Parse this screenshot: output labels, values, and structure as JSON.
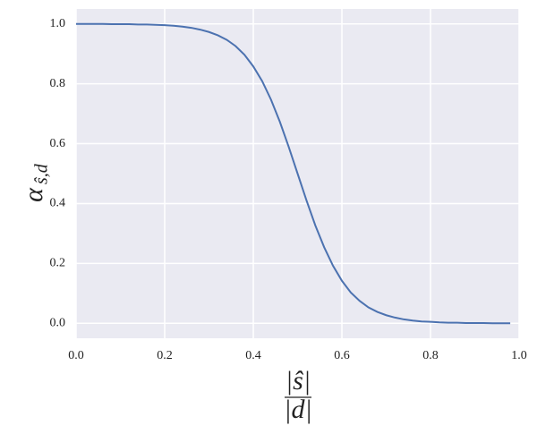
{
  "chart_data": {
    "type": "line",
    "xlabel": {
      "numerator": "|ŝ|",
      "denominator": "|d|"
    },
    "ylabel": {
      "symbol": "α",
      "subscript": "ŝ,d"
    },
    "x": [
      0,
      0.02,
      0.04,
      0.06,
      0.08,
      0.1,
      0.12,
      0.14,
      0.16,
      0.18,
      0.2,
      0.22,
      0.24,
      0.26,
      0.28,
      0.3,
      0.32,
      0.34,
      0.36,
      0.38,
      0.4,
      0.42,
      0.44,
      0.46,
      0.48,
      0.5,
      0.52,
      0.54,
      0.56,
      0.58,
      0.6,
      0.62,
      0.64,
      0.66,
      0.68,
      0.7,
      0.72,
      0.74,
      0.76,
      0.78,
      0.8,
      0.82,
      0.84,
      0.86,
      0.88,
      0.9,
      0.92,
      0.94,
      0.96,
      0.98
    ],
    "series": [
      {
        "color": "#4c72b0",
        "values": [
          1.0,
          1.0,
          1.0,
          1.0,
          0.999,
          0.999,
          0.999,
          0.998,
          0.998,
          0.997,
          0.996,
          0.994,
          0.991,
          0.987,
          0.981,
          0.973,
          0.962,
          0.947,
          0.926,
          0.897,
          0.858,
          0.809,
          0.747,
          0.673,
          0.589,
          0.5,
          0.411,
          0.327,
          0.254,
          0.192,
          0.142,
          0.103,
          0.075,
          0.053,
          0.038,
          0.027,
          0.019,
          0.013,
          0.009,
          0.006,
          0.005,
          0.003,
          0.002,
          0.002,
          0.001,
          0.001,
          0.001,
          0.0,
          0.0,
          0.0
        ]
      }
    ],
    "xlim": [
      0,
      1
    ],
    "ylim": [
      -0.05,
      1.05
    ],
    "xticks": [
      {
        "value": 0,
        "label": "0.0"
      },
      {
        "value": 0.2,
        "label": "0.2"
      },
      {
        "value": 0.4,
        "label": "0.4"
      },
      {
        "value": 0.6,
        "label": "0.6"
      },
      {
        "value": 0.8,
        "label": "0.8"
      },
      {
        "value": 1,
        "label": "1.0"
      }
    ],
    "yticks": [
      {
        "value": 0,
        "label": "0.0"
      },
      {
        "value": 0.2,
        "label": "0.2"
      },
      {
        "value": 0.4,
        "label": "0.4"
      },
      {
        "value": 0.6,
        "label": "0.6"
      },
      {
        "value": 0.8,
        "label": "0.8"
      },
      {
        "value": 1,
        "label": "1.0"
      }
    ],
    "grid": true,
    "background": "#eaeaf2"
  }
}
